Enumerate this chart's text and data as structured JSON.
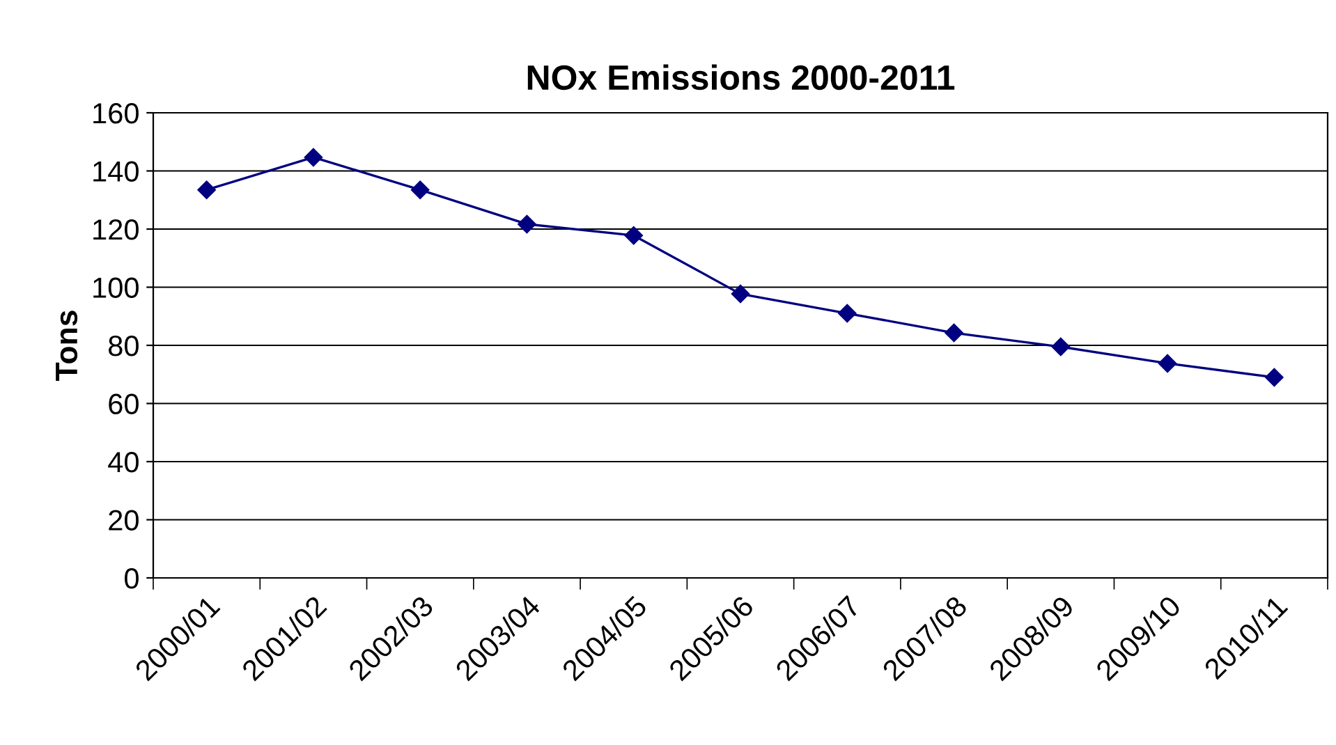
{
  "chart_data": {
    "type": "line",
    "title": "NOx Emissions 2000-2011",
    "ylabel": "Tons",
    "categories": [
      "2000/01",
      "2001/02",
      "2002/03",
      "2003/04",
      "2004/05",
      "2005/06",
      "2006/07",
      "2007/08",
      "2008/09",
      "2009/10",
      "2010/11"
    ],
    "series": [
      {
        "color": "#000080",
        "values": [
          133.5,
          144.7,
          133.5,
          121.7,
          117.8,
          97.7,
          91,
          84.3,
          79.5,
          73.8,
          69
        ]
      }
    ],
    "ylim": [
      0,
      160
    ],
    "yticks": [
      0,
      20,
      40,
      60,
      80,
      100,
      120,
      140,
      160
    ],
    "grid": "y",
    "marker": "diamond",
    "line_style": "solid",
    "legend": false
  }
}
